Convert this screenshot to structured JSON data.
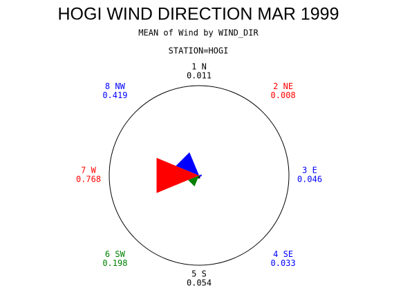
{
  "chart_data": {
    "type": "wind-rose",
    "title": "HOGI WIND DIRECTION MAR 1999",
    "subtitle": "MEAN of Wind by WIND_DIR",
    "group_label": "STATION=HOGI",
    "categories": [
      "1 N",
      "2 NE",
      "3 E",
      "4 SE",
      "5 S",
      "6 SW",
      "7 W",
      "8 NW"
    ],
    "values": [
      0.011,
      0.008,
      0.046,
      0.033,
      0.054,
      0.198,
      0.768,
      0.419
    ],
    "colors": [
      "#000000",
      "#ff0000",
      "#0000ff",
      "#0000ff",
      "#000000",
      "#008000",
      "#ff0000",
      "#0000ff"
    ],
    "rlim": [
      0,
      1.5
    ]
  }
}
